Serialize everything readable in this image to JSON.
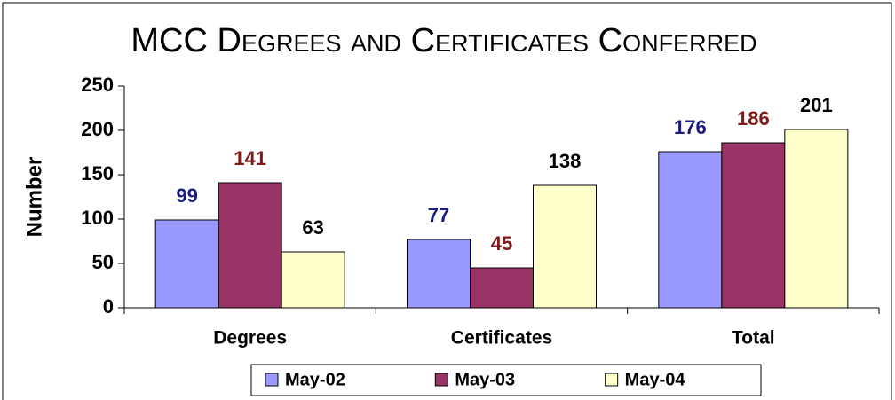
{
  "chart_data": {
    "type": "bar",
    "title": "MCC Degrees and Certificates Conferred",
    "y_label": "Number",
    "categories": [
      "Degrees",
      "Certificates",
      "Total"
    ],
    "series": [
      {
        "name": "May-02",
        "color": "#9999ff",
        "label_color": "#1a1a80",
        "values": [
          99,
          77,
          176
        ]
      },
      {
        "name": "May-03",
        "color": "#993366",
        "label_color": "#7f1a1a",
        "values": [
          141,
          45,
          186
        ]
      },
      {
        "name": "May-04",
        "color": "#ffffcc",
        "label_color": "#000000",
        "values": [
          63,
          138,
          201
        ]
      }
    ],
    "ylim": [
      0,
      250
    ],
    "yticks": [
      0,
      50,
      100,
      150,
      200,
      250
    ],
    "legend": "bottom"
  }
}
